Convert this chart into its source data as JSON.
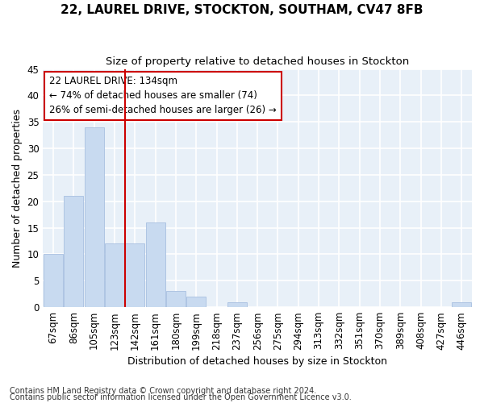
{
  "title": "22, LAUREL DRIVE, STOCKTON, SOUTHAM, CV47 8FB",
  "subtitle": "Size of property relative to detached houses in Stockton",
  "xlabel": "Distribution of detached houses by size in Stockton",
  "ylabel": "Number of detached properties",
  "footnote1": "Contains HM Land Registry data © Crown copyright and database right 2024.",
  "footnote2": "Contains public sector information licensed under the Open Government Licence v3.0.",
  "categories": [
    "67sqm",
    "86sqm",
    "105sqm",
    "123sqm",
    "142sqm",
    "161sqm",
    "180sqm",
    "199sqm",
    "218sqm",
    "237sqm",
    "256sqm",
    "275sqm",
    "294sqm",
    "313sqm",
    "332sqm",
    "351sqm",
    "370sqm",
    "389sqm",
    "408sqm",
    "427sqm",
    "446sqm"
  ],
  "values": [
    10,
    21,
    34,
    12,
    12,
    16,
    3,
    2,
    0,
    1,
    0,
    0,
    0,
    0,
    0,
    0,
    0,
    0,
    0,
    0,
    1
  ],
  "bar_color": "#c8daf0",
  "bar_edge_color": "#a8c0e0",
  "vline_x": 4.0,
  "vline_color": "#cc0000",
  "annotation_line1": "22 LAUREL DRIVE: 134sqm",
  "annotation_line2": "← 74% of detached houses are smaller (74)",
  "annotation_line3": "26% of semi-detached houses are larger (26) →",
  "annotation_box_color": "#ffffff",
  "annotation_box_edge": "#cc0000",
  "ylim": [
    0,
    45
  ],
  "yticks": [
    0,
    5,
    10,
    15,
    20,
    25,
    30,
    35,
    40,
    45
  ],
  "bg_color": "#e8f0f8",
  "grid_color": "#ffffff",
  "title_fontsize": 11,
  "subtitle_fontsize": 9.5,
  "axis_label_fontsize": 9,
  "tick_fontsize": 8.5,
  "footnote_fontsize": 7
}
